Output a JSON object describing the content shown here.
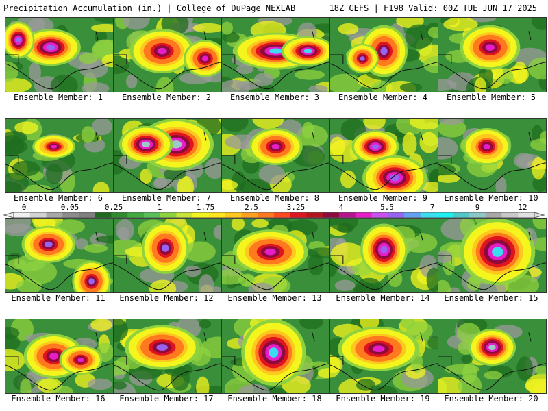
{
  "header": {
    "title_left": "Precipitation Accumulation (in.) | College of DuPage NEXLAB",
    "title_right": "18Z GEFS | F198 Valid: 00Z TUE JUN 17 2025"
  },
  "panels": [
    {
      "label": "Ensemble Member: 1",
      "peak": 5.2,
      "blobs": [
        [
          0.42,
          0.4,
          0.28,
          0.25
        ],
        [
          0.12,
          0.3,
          0.15,
          0.25
        ]
      ]
    },
    {
      "label": "Ensemble Member: 2",
      "peak": 4.8,
      "blobs": [
        [
          0.45,
          0.45,
          0.3,
          0.3
        ],
        [
          0.85,
          0.55,
          0.2,
          0.25
        ]
      ]
    },
    {
      "label": "Ensemble Member: 3",
      "peak": 5.4,
      "blobs": [
        [
          0.5,
          0.45,
          0.4,
          0.25
        ],
        [
          0.8,
          0.45,
          0.25,
          0.2
        ]
      ]
    },
    {
      "label": "Ensemble Member: 4",
      "peak": 5.0,
      "blobs": [
        [
          0.5,
          0.45,
          0.22,
          0.35
        ],
        [
          0.3,
          0.55,
          0.15,
          0.2
        ]
      ]
    },
    {
      "label": "Ensemble Member: 5",
      "peak": 4.9,
      "blobs": [
        [
          0.48,
          0.4,
          0.28,
          0.3
        ]
      ]
    },
    {
      "label": "Ensemble Member: 6",
      "peak": 4.5,
      "blobs": [
        [
          0.45,
          0.38,
          0.2,
          0.16
        ]
      ]
    },
    {
      "label": "Ensemble Member: 7",
      "peak": 5.6,
      "blobs": [
        [
          0.58,
          0.35,
          0.35,
          0.35
        ],
        [
          0.3,
          0.35,
          0.25,
          0.25
        ]
      ]
    },
    {
      "label": "Ensemble Member: 8",
      "peak": 4.7,
      "blobs": [
        [
          0.5,
          0.38,
          0.25,
          0.25
        ]
      ]
    },
    {
      "label": "Ensemble Member: 9",
      "peak": 5.3,
      "blobs": [
        [
          0.42,
          0.38,
          0.22,
          0.22
        ],
        [
          0.6,
          0.8,
          0.3,
          0.3
        ]
      ]
    },
    {
      "label": "Ensemble Member: 10",
      "peak": 4.6,
      "blobs": [
        [
          0.45,
          0.38,
          0.22,
          0.25
        ]
      ]
    },
    {
      "label": "Ensemble Member: 11",
      "peak": 5.1,
      "blobs": [
        [
          0.4,
          0.35,
          0.25,
          0.25
        ],
        [
          0.8,
          0.85,
          0.18,
          0.28
        ]
      ]
    },
    {
      "label": "Ensemble Member: 12",
      "peak": 5.0,
      "blobs": [
        [
          0.48,
          0.4,
          0.22,
          0.35
        ]
      ]
    },
    {
      "label": "Ensemble Member: 13",
      "peak": 4.9,
      "blobs": [
        [
          0.45,
          0.45,
          0.35,
          0.3
        ]
      ]
    },
    {
      "label": "Ensemble Member: 14",
      "peak": 5.2,
      "blobs": [
        [
          0.5,
          0.42,
          0.22,
          0.35
        ]
      ]
    },
    {
      "label": "Ensemble Member: 15",
      "peak": 5.5,
      "blobs": [
        [
          0.55,
          0.45,
          0.35,
          0.45
        ]
      ]
    },
    {
      "label": "Ensemble Member: 16",
      "peak": 4.8,
      "blobs": [
        [
          0.45,
          0.5,
          0.28,
          0.3
        ],
        [
          0.7,
          0.55,
          0.2,
          0.2
        ]
      ]
    },
    {
      "label": "Ensemble Member: 17",
      "peak": 5.0,
      "blobs": [
        [
          0.45,
          0.38,
          0.35,
          0.3
        ]
      ]
    },
    {
      "label": "Ensemble Member: 18",
      "peak": 5.4,
      "blobs": [
        [
          0.48,
          0.45,
          0.3,
          0.45
        ]
      ]
    },
    {
      "label": "Ensemble Member: 19",
      "peak": 4.9,
      "blobs": [
        [
          0.45,
          0.4,
          0.38,
          0.3
        ]
      ]
    },
    {
      "label": "Ensemble Member: 20",
      "peak": 5.6,
      "blobs": [
        [
          0.5,
          0.38,
          0.22,
          0.25
        ]
      ]
    }
  ],
  "colorbar": {
    "labels": [
      "0",
      "0.05",
      "0.25",
      "1",
      "1.75",
      "2.5",
      "3.25",
      "4",
      "5.5",
      "7",
      "9",
      "12"
    ],
    "colors": [
      "#f0f0f0",
      "#d2d2d2",
      "#a8a8a8",
      "#8c8c8c",
      "#7f7f7f",
      "#1e6b1e",
      "#2e8b2e",
      "#3faa3f",
      "#58c058",
      "#8fd23f",
      "#c8e33a",
      "#f5f51e",
      "#ffe51e",
      "#ffc81e",
      "#ffa01e",
      "#ff7a1e",
      "#ff4a1e",
      "#e0141e",
      "#b4141e",
      "#8c0a3c",
      "#b4148c",
      "#e61ec8",
      "#c850f0",
      "#9664f0",
      "#64a0f0",
      "#3cdcf0",
      "#1ef0f0",
      "#50c8c8",
      "#8cc8c8",
      "#a8a8a8",
      "#c8c8c8",
      "#e0e0e0"
    ]
  }
}
